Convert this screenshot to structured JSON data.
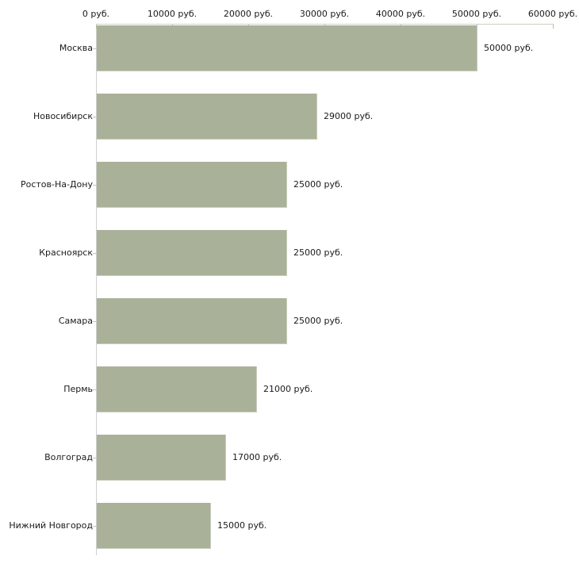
{
  "chart_data": {
    "type": "bar",
    "orientation": "horizontal",
    "title": "",
    "xlabel": "",
    "ylabel": "",
    "categories": [
      "Москва",
      "Новосибирск",
      "Ростов-На-Дону",
      "Красноярск",
      "Самара",
      "Пермь",
      "Волгоград",
      "Нижний Новгород"
    ],
    "values": [
      50000,
      29000,
      25000,
      25000,
      25000,
      21000,
      17000,
      15000
    ],
    "value_labels": [
      "50000 руб.",
      "29000 руб.",
      "25000 руб.",
      "25000 руб.",
      "25000 руб.",
      "21000 руб.",
      "17000 руб.",
      "15000 руб."
    ],
    "x_ticks": [
      0,
      10000,
      20000,
      30000,
      40000,
      50000,
      60000
    ],
    "x_tick_labels": [
      "0 руб.",
      "10000 руб.",
      "20000 руб.",
      "30000 руб.",
      "40000 руб.",
      "50000 руб.",
      "60000 руб."
    ],
    "xlim": [
      0,
      60000
    ],
    "unit": "руб.",
    "grid": "off",
    "legend": "none",
    "axis_position": "top",
    "colors": {
      "bar_fill": "#aab199",
      "bar_edge": "#c9cdbb",
      "axis_line": "#cdd0c3",
      "tick_mark": "#b9bfa3",
      "text": "#1a1a1a",
      "background": "#ffffff"
    }
  }
}
